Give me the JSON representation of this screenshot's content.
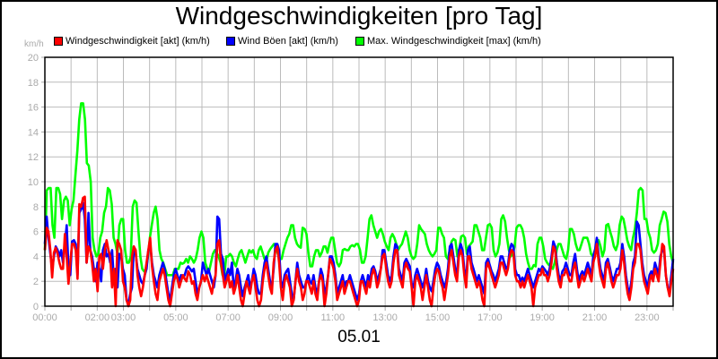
{
  "chart_data": {
    "type": "line",
    "title": "Windgeschwindigkeiten [pro Tag]",
    "xlabel": "05.01",
    "ylabel": "km/h",
    "ylim": [
      0,
      20
    ],
    "yticks": [
      0,
      2,
      4,
      6,
      8,
      10,
      12,
      14,
      16,
      18,
      20
    ],
    "xlim_hours": [
      0,
      24
    ],
    "xtick_labels": [
      {
        "hour": 0,
        "label": "00:00"
      },
      {
        "hour": 2,
        "label": "02:00"
      },
      {
        "hour": 3,
        "label": "03:00"
      },
      {
        "hour": 5,
        "label": "05:00"
      },
      {
        "hour": 7,
        "label": "07:00"
      },
      {
        "hour": 9,
        "label": "09:00"
      },
      {
        "hour": 11,
        "label": "11:00"
      },
      {
        "hour": 13,
        "label": "13:00"
      },
      {
        "hour": 15,
        "label": "15:00"
      },
      {
        "hour": 17,
        "label": "17:00"
      },
      {
        "hour": 19,
        "label": "19:00"
      },
      {
        "hour": 21,
        "label": "21:00"
      },
      {
        "hour": 23,
        "label": "23:00"
      }
    ],
    "grid": true,
    "legend_position": "top",
    "x_step_minutes": 10,
    "series": [
      {
        "name": "Max. Windgeschwindigkeit [max] (km/h)",
        "color": "#00ff00",
        "values": [
          4.5,
          9.3,
          9.5,
          9.5,
          6.5,
          5.5,
          9.5,
          9.5,
          9.0,
          7.0,
          8.5,
          8.8,
          8.5,
          6.5,
          7.8,
          8.5,
          10.5,
          12.5,
          15.0,
          16.3,
          16.3,
          15.0,
          11.5,
          11.3,
          10.0,
          5.5,
          4.5,
          4.0,
          4.2,
          5.5,
          6.0,
          7.5,
          8.0,
          9.5,
          9.3,
          8.2,
          5.5,
          5.0,
          4.2,
          6.5,
          7.0,
          7.0,
          4.5,
          3.5,
          3.5,
          4.0,
          8.0,
          8.5,
          8.3,
          6.0,
          4.0,
          3.0,
          2.8,
          3.0,
          4.0,
          5.5,
          6.5,
          7.5,
          8.0,
          7.0,
          4.5,
          3.8,
          3.5,
          3.0,
          2.5,
          2.5,
          2.5,
          2.5,
          3.0,
          3.0,
          3.0,
          3.5,
          3.4,
          3.5,
          3.8,
          3.5,
          4.0,
          3.8,
          3.5,
          3.8,
          4.5,
          5.5,
          6.0,
          5.5,
          3.5,
          3.0,
          2.8,
          3.5,
          4.2,
          4.5,
          4.3,
          4.0,
          3.5,
          2.5,
          2.5,
          4.0,
          4.0,
          4.2,
          4.0,
          3.5,
          3.2,
          3.8,
          4.3,
          4.5,
          4.0,
          3.5,
          4.0,
          4.5,
          4.3,
          4.5,
          4.0,
          3.8,
          4.5,
          4.8,
          4.3,
          3.8,
          3.6,
          4.3,
          4.6,
          4.8,
          5.0,
          4.8,
          4.2,
          3.8,
          3.8,
          4.5,
          5.0,
          5.5,
          5.8,
          6.5,
          6.5,
          5.5,
          5.0,
          4.8,
          4.7,
          6.3,
          6.2,
          5.8,
          4.3,
          3.2,
          3.2,
          4.0,
          4.5,
          4.5,
          4.0,
          4.3,
          4.8,
          4.8,
          4.3,
          5.0,
          5.5,
          5.5,
          4.5,
          3.5,
          3.2,
          3.5,
          4.5,
          4.6,
          4.5,
          4.5,
          4.8,
          4.9,
          4.8,
          5.0,
          5.0,
          4.5,
          3.5,
          3.5,
          4.0,
          5.5,
          7.0,
          7.3,
          6.5,
          6.0,
          5.5,
          6.0,
          6.2,
          5.8,
          5.2,
          4.8,
          4.5,
          5.5,
          5.8,
          5.5,
          5.0,
          4.5,
          4.8,
          5.0,
          5.5,
          6.0,
          5.5,
          4.5,
          4.0,
          3.8,
          4.0,
          5.0,
          6.5,
          6.2,
          6.0,
          5.8,
          5.0,
          4.5,
          4.2,
          4.0,
          4.2,
          4.5,
          6.3,
          6.3,
          5.8,
          5.5,
          4.0,
          3.8,
          4.5,
          5.2,
          5.4,
          5.3,
          4.0,
          4.5,
          5.6,
          5.7,
          5.5,
          4.2,
          4.8,
          5.0,
          5.2,
          6.5,
          6.5,
          6.0,
          5.5,
          4.5,
          4.5,
          5.5,
          6.5,
          6.6,
          6.3,
          4.5,
          4.0,
          4.3,
          5.0,
          7.0,
          7.3,
          6.8,
          5.5,
          4.5,
          4.0,
          4.2,
          4.8,
          6.3,
          6.5,
          6.5,
          6.2,
          5.5,
          4.2,
          3.5,
          3.0,
          3.0,
          3.3,
          3.2,
          5.0,
          5.5,
          5.5,
          4.8,
          3.8,
          3.5,
          3.3,
          3.2,
          3.0,
          3.5,
          4.5,
          5.0,
          5.0,
          4.5,
          4.0,
          3.8,
          4.5,
          6.2,
          6.2,
          5.8,
          5.0,
          4.5,
          4.5,
          5.0,
          5.5,
          5.5,
          5.5,
          5.0,
          4.2,
          4.0,
          4.5,
          5.0,
          5.3,
          4.8,
          4.0,
          4.5,
          6.5,
          6.6,
          6.0,
          5.5,
          4.8,
          4.5,
          5.0,
          6.5,
          7.2,
          7.0,
          6.2,
          5.3,
          4.8,
          4.5,
          5.5,
          6.2,
          7.5,
          9.3,
          9.5,
          9.3,
          7.0,
          7.0,
          6.0,
          5.5,
          4.5,
          4.3,
          4.5,
          5.0,
          6.5,
          7.0,
          7.6,
          7.5,
          6.8,
          5.0,
          4.0,
          3.5
        ]
      },
      {
        "name": "Wind Böen [akt] (km/h)",
        "color": "#0000ff",
        "values": [
          5.0,
          7.2,
          5.5,
          4.2,
          3.0,
          4.0,
          4.8,
          4.5,
          4.0,
          4.5,
          3.5,
          4.8,
          6.5,
          3.0,
          2.5,
          5.2,
          5.3,
          5.0,
          2.5,
          7.5,
          7.8,
          8.3,
          7.0,
          3.5,
          7.5,
          4.5,
          4.0,
          3.0,
          2.0,
          3.5,
          3.0,
          2.0,
          4.5,
          5.0,
          4.0,
          4.2,
          3.5,
          4.5,
          2.0,
          3.0,
          1.5,
          4.2,
          4.0,
          3.0,
          2.5,
          0.5,
          0.2,
          1.0,
          1.5,
          4.8,
          4.2,
          3.0,
          2.5,
          2.0,
          1.8,
          2.5,
          3.0,
          4.5,
          5.0,
          3.5,
          2.5,
          2.0,
          1.5,
          2.5,
          3.0,
          3.5,
          3.0,
          2.0,
          1.0,
          0.5,
          1.5,
          2.5,
          3.0,
          2.5,
          2.0,
          2.5,
          2.3,
          2.5,
          3.0,
          3.2,
          3.0,
          2.8,
          3.0,
          2.0,
          1.0,
          1.5,
          2.0,
          3.5,
          3.0,
          2.5,
          3.0,
          2.5,
          2.0,
          1.5,
          2.5,
          7.2,
          7.0,
          4.2,
          3.8,
          2.0,
          2.5,
          3.0,
          2.5,
          3.5,
          1.5,
          2.0,
          3.0,
          2.5,
          1.5,
          0.8,
          1.5,
          2.0,
          2.5,
          1.5,
          2.0,
          3.0,
          2.5,
          1.5,
          1.0,
          1.0,
          2.5,
          3.5,
          4.0,
          3.0,
          2.0,
          1.5,
          3.0,
          5.0,
          5.0,
          4.5,
          2.0,
          1.5,
          2.5,
          2.8,
          3.0,
          2.0,
          1.0,
          0.5,
          2.0,
          3.5,
          2.5,
          2.0,
          1.5,
          1.5,
          2.0,
          2.5,
          2.0,
          1.8,
          2.5,
          1.5,
          1.0,
          2.0,
          3.0,
          2.5,
          1.0,
          1.5,
          2.5,
          4.0,
          4.0,
          3.5,
          2.5,
          1.0,
          1.5,
          2.0,
          2.5,
          1.5,
          2.0,
          2.0,
          2.5,
          2.0,
          1.5,
          1.0,
          0.5,
          1.0,
          2.0,
          2.5,
          2.0,
          1.5,
          2.5,
          2.0,
          3.0,
          3.2,
          2.8,
          2.0,
          2.5,
          3.0,
          4.5,
          4.5,
          3.5,
          2.5,
          2.0,
          2.5,
          4.0,
          5.0,
          4.8,
          3.0,
          2.5,
          2.0,
          3.5,
          3.8,
          3.5,
          3.2,
          1.8,
          1.5,
          2.5,
          3.0,
          2.5,
          2.0,
          1.5,
          2.0,
          3.0,
          2.0,
          1.5,
          1.2,
          2.0,
          3.0,
          3.5,
          3.2,
          2.5,
          2.0,
          1.5,
          2.0,
          3.0,
          4.8,
          5.0,
          4.0,
          3.0,
          2.5,
          4.5,
          5.0,
          4.5,
          3.0,
          2.0,
          4.5,
          4.8,
          3.5,
          3.0,
          2.5,
          2.0,
          2.5,
          2.0,
          1.5,
          1.0,
          3.5,
          3.8,
          3.3,
          2.8,
          2.5,
          2.0,
          2.5,
          3.0,
          4.0,
          4.0,
          3.5,
          3.0,
          3.2,
          4.5,
          5.0,
          4.8,
          3.0,
          2.5,
          2.5,
          2.0,
          2.3,
          2.0,
          2.5,
          3.0,
          2.5,
          2.0,
          1.5,
          2.0,
          2.5,
          3.0,
          2.8,
          3.2,
          3.0,
          2.8,
          2.5,
          3.0,
          4.0,
          5.2,
          4.8,
          3.5,
          2.5,
          2.0,
          2.8,
          3.0,
          3.5,
          3.0,
          2.5,
          2.5,
          3.5,
          4.2,
          3.0,
          2.0,
          2.5,
          2.8,
          2.5,
          3.0,
          3.5,
          3.0,
          2.5,
          4.0,
          4.5,
          5.5,
          4.0,
          3.0,
          2.5,
          2.0,
          3.5,
          3.8,
          3.2,
          2.5,
          2.0,
          2.5,
          3.0,
          3.0,
          3.5,
          5.0,
          4.0,
          2.5,
          1.5,
          1.0,
          2.0,
          3.5,
          4.0,
          6.8,
          6.5,
          5.0,
          3.5,
          2.5,
          2.0,
          1.5,
          2.5,
          2.8,
          2.5,
          3.5,
          3.0,
          2.5,
          4.0,
          4.5,
          4.5,
          2.5,
          1.5,
          1.2,
          2.5,
          3.8
        ]
      },
      {
        "name": "Windgeschwindigkeit [akt] (km/h)",
        "color": "#ff0000",
        "values": [
          4.5,
          6.3,
          6.0,
          4.5,
          2.3,
          4.3,
          4.7,
          4.2,
          3.5,
          3.0,
          3.0,
          5.8,
          4.0,
          1.8,
          3.5,
          5.0,
          5.0,
          4.5,
          2.2,
          8.2,
          8.0,
          8.7,
          8.8,
          3.5,
          4.8,
          4.5,
          3.5,
          2.0,
          3.0,
          1.2,
          4.0,
          4.2,
          3.0,
          4.5,
          5.3,
          4.5,
          4.0,
          1.5,
          3.0,
          0.0,
          5.3,
          5.0,
          4.5,
          2.0,
          1.5,
          0.5,
          0.0,
          0.5,
          4.0,
          4.8,
          4.5,
          2.5,
          1.5,
          0.8,
          1.5,
          2.5,
          3.5,
          4.5,
          5.5,
          3.2,
          2.0,
          1.0,
          0.5,
          2.0,
          2.5,
          3.0,
          2.5,
          1.5,
          0.5,
          0.0,
          1.0,
          2.0,
          2.5,
          2.2,
          1.5,
          2.0,
          2.5,
          2.2,
          2.0,
          2.8,
          2.5,
          1.8,
          2.0,
          1.0,
          0.5,
          1.5,
          2.0,
          2.5,
          2.0,
          2.5,
          2.0,
          1.5,
          1.0,
          2.0,
          2.5,
          5.0,
          5.3,
          3.5,
          2.5,
          1.5,
          2.0,
          2.5,
          1.5,
          2.0,
          1.0,
          1.5,
          2.5,
          1.5,
          0.5,
          0.0,
          1.0,
          2.0,
          1.5,
          1.0,
          2.0,
          2.5,
          1.5,
          0.5,
          0.0,
          0.5,
          2.0,
          3.0,
          3.5,
          2.5,
          1.5,
          1.0,
          3.5,
          4.5,
          4.8,
          3.5,
          1.5,
          0.5,
          2.0,
          2.5,
          2.0,
          1.5,
          0.0,
          0.5,
          2.0,
          3.0,
          2.0,
          1.5,
          0.5,
          1.0,
          2.0,
          2.0,
          1.5,
          1.0,
          2.0,
          1.0,
          0.5,
          2.0,
          2.5,
          2.0,
          0.0,
          1.0,
          2.5,
          3.8,
          3.5,
          3.0,
          2.0,
          0.5,
          1.0,
          1.5,
          2.0,
          1.0,
          1.5,
          2.0,
          2.0,
          1.5,
          1.0,
          0.5,
          0.0,
          0.5,
          2.0,
          2.0,
          1.5,
          1.0,
          2.0,
          1.5,
          2.5,
          3.0,
          2.5,
          1.5,
          2.0,
          3.0,
          4.0,
          4.2,
          3.0,
          2.0,
          1.5,
          2.0,
          3.5,
          4.5,
          4.5,
          2.5,
          2.0,
          1.5,
          3.0,
          3.5,
          3.0,
          2.8,
          1.5,
          0.0,
          2.0,
          2.5,
          2.0,
          1.5,
          0.5,
          1.5,
          2.5,
          1.5,
          0.5,
          0.0,
          1.5,
          2.5,
          3.0,
          2.8,
          2.0,
          1.5,
          0.5,
          1.5,
          2.5,
          4.0,
          4.5,
          3.5,
          2.5,
          2.0,
          4.0,
          4.5,
          4.0,
          2.5,
          1.5,
          4.0,
          4.0,
          3.0,
          2.5,
          2.0,
          1.5,
          2.0,
          1.5,
          0.5,
          0.0,
          3.0,
          3.5,
          3.0,
          2.5,
          2.0,
          1.5,
          2.0,
          2.5,
          3.5,
          3.5,
          3.0,
          2.5,
          3.0,
          4.0,
          4.5,
          4.3,
          2.5,
          2.0,
          2.0,
          1.5,
          2.0,
          1.5,
          2.0,
          2.5,
          2.0,
          1.5,
          0.0,
          1.5,
          2.0,
          2.5,
          2.5,
          3.0,
          2.5,
          2.5,
          2.0,
          2.5,
          3.5,
          4.8,
          4.5,
          3.0,
          2.0,
          1.5,
          2.5,
          2.5,
          3.0,
          2.5,
          2.0,
          2.0,
          3.0,
          3.5,
          2.5,
          1.5,
          2.0,
          2.5,
          2.0,
          2.5,
          3.0,
          2.5,
          2.0,
          3.5,
          4.0,
          5.0,
          3.5,
          2.5,
          2.0,
          1.5,
          3.0,
          3.5,
          2.8,
          2.0,
          1.5,
          2.0,
          2.5,
          2.5,
          3.0,
          4.5,
          3.5,
          2.0,
          1.0,
          0.5,
          1.5,
          3.0,
          3.5,
          5.0,
          5.0,
          4.5,
          3.0,
          2.0,
          1.5,
          1.0,
          2.0,
          2.5,
          2.0,
          3.0,
          2.5,
          2.0,
          3.5,
          5.0,
          4.8,
          2.5,
          1.5,
          0.8,
          2.0,
          3.0
        ]
      }
    ]
  },
  "title": "Windgeschwindigkeiten [pro Tag]",
  "unit_label": "km/h",
  "date_label": "05.01",
  "legend": [
    {
      "label": "Windgeschwindigkeit [akt] (km/h)",
      "color": "#ff0000"
    },
    {
      "label": "Wind Böen [akt] (km/h)",
      "color": "#0000ff"
    },
    {
      "label": "Max. Windgeschwindigkeit [max] (km/h)",
      "color": "#00ff00"
    }
  ],
  "colors": {
    "grid": "#bbbbbb",
    "axis_text": "#aaaaaa",
    "frame": "#000000"
  }
}
